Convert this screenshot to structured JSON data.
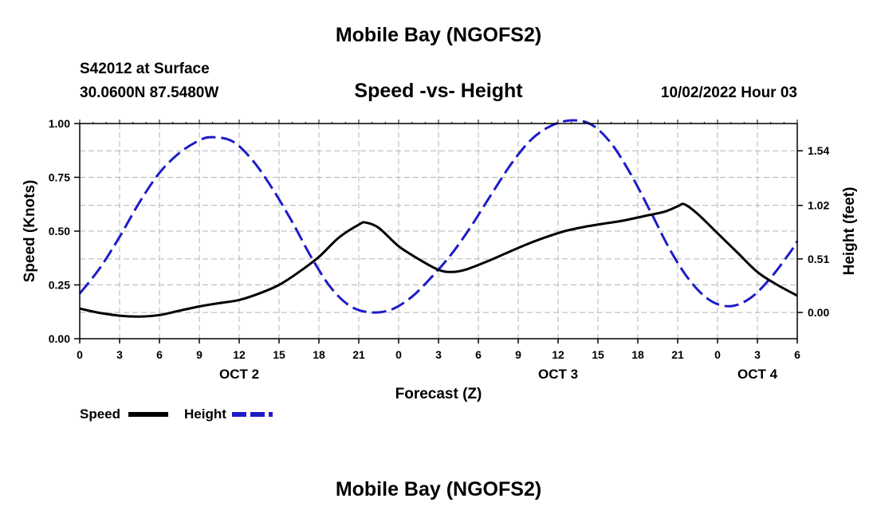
{
  "header": {
    "title": "Mobile Bay (NGOFS2)",
    "station": "S42012 at Surface",
    "coordinates": "30.0600N  87.5480W",
    "subtitle": "Speed -vs- Height",
    "timestamp": "10/02/2022 Hour 03"
  },
  "footer": {
    "title": "Mobile Bay (NGOFS2)"
  },
  "chart_data": {
    "type": "line",
    "xlabel": "Forecast (Z)",
    "ylabel_left": "Speed (Knots)",
    "ylabel_right": "Height (feet)",
    "xlim": [
      0,
      54
    ],
    "ylim_left": [
      0,
      1.0
    ],
    "ylim_right": [
      -0.25,
      1.8
    ],
    "x_ticks": [
      0,
      3,
      6,
      9,
      12,
      15,
      18,
      21,
      24,
      27,
      30,
      33,
      36,
      39,
      42,
      45,
      48,
      51,
      54
    ],
    "x_tick_labels": [
      "0",
      "3",
      "6",
      "9",
      "12",
      "15",
      "18",
      "21",
      "0",
      "3",
      "6",
      "9",
      "12",
      "15",
      "18",
      "21",
      "0",
      "3",
      "6"
    ],
    "date_labels": [
      {
        "x": 12,
        "label": "OCT 2"
      },
      {
        "x": 36,
        "label": "OCT 3"
      },
      {
        "x": 51,
        "label": "OCT 4"
      }
    ],
    "left_ticks": [
      0,
      0.25,
      0.5,
      0.75,
      1.0
    ],
    "left_tick_labels": [
      "0.00",
      "0.25",
      "0.50",
      "0.75",
      "1.00"
    ],
    "right_ticks": [
      0.0,
      0.51,
      1.02,
      1.54
    ],
    "right_tick_labels": [
      "0.00",
      "0.51",
      "1.02",
      "1.54"
    ],
    "grid": true,
    "series": [
      {
        "name": "Speed",
        "axis": "left",
        "color": "#000000",
        "style": "solid",
        "x": [
          0,
          1.5,
          3,
          4.5,
          6,
          7.5,
          9,
          10.5,
          12,
          13.5,
          15,
          16.5,
          18,
          19.5,
          21,
          21.5,
          22.5,
          24,
          25.5,
          27,
          28,
          29,
          30.5,
          32,
          33.5,
          35,
          36.5,
          38,
          39.5,
          41,
          42.5,
          44,
          45,
          45.5,
          46.5,
          48,
          49.5,
          51,
          52.5,
          54
        ],
        "values": [
          0.14,
          0.12,
          0.107,
          0.103,
          0.11,
          0.13,
          0.15,
          0.165,
          0.18,
          0.21,
          0.25,
          0.31,
          0.38,
          0.47,
          0.53,
          0.54,
          0.515,
          0.43,
          0.37,
          0.32,
          0.31,
          0.32,
          0.355,
          0.395,
          0.435,
          0.47,
          0.5,
          0.52,
          0.535,
          0.55,
          0.57,
          0.59,
          0.615,
          0.625,
          0.58,
          0.49,
          0.4,
          0.31,
          0.25,
          0.2
        ]
      },
      {
        "name": "Height",
        "axis": "right",
        "color": "#1c1cc8",
        "style": "dashed",
        "x": [
          0,
          1.5,
          3,
          4.5,
          6,
          7.5,
          9,
          10,
          11.5,
          13,
          14.5,
          16,
          17.5,
          19,
          20.5,
          22,
          23.5,
          25,
          26.5,
          28,
          29.5,
          31,
          32.5,
          34,
          35.5,
          37,
          38.5,
          40,
          41.5,
          43,
          44.5,
          46,
          47.5,
          49,
          50.5,
          52,
          53.5,
          54
        ],
        "values": [
          0.18,
          0.42,
          0.72,
          1.05,
          1.33,
          1.52,
          1.64,
          1.67,
          1.63,
          1.45,
          1.18,
          0.86,
          0.51,
          0.22,
          0.05,
          0.0,
          0.03,
          0.15,
          0.34,
          0.56,
          0.83,
          1.13,
          1.42,
          1.65,
          1.78,
          1.83,
          1.79,
          1.61,
          1.31,
          0.95,
          0.58,
          0.29,
          0.11,
          0.06,
          0.14,
          0.33,
          0.58,
          0.68
        ]
      }
    ],
    "legend": [
      {
        "label": "Speed",
        "color": "#000000",
        "style": "solid"
      },
      {
        "label": "Height",
        "color": "#1c1cc8",
        "style": "dashed"
      }
    ],
    "legend_placement": "bottom-left"
  }
}
